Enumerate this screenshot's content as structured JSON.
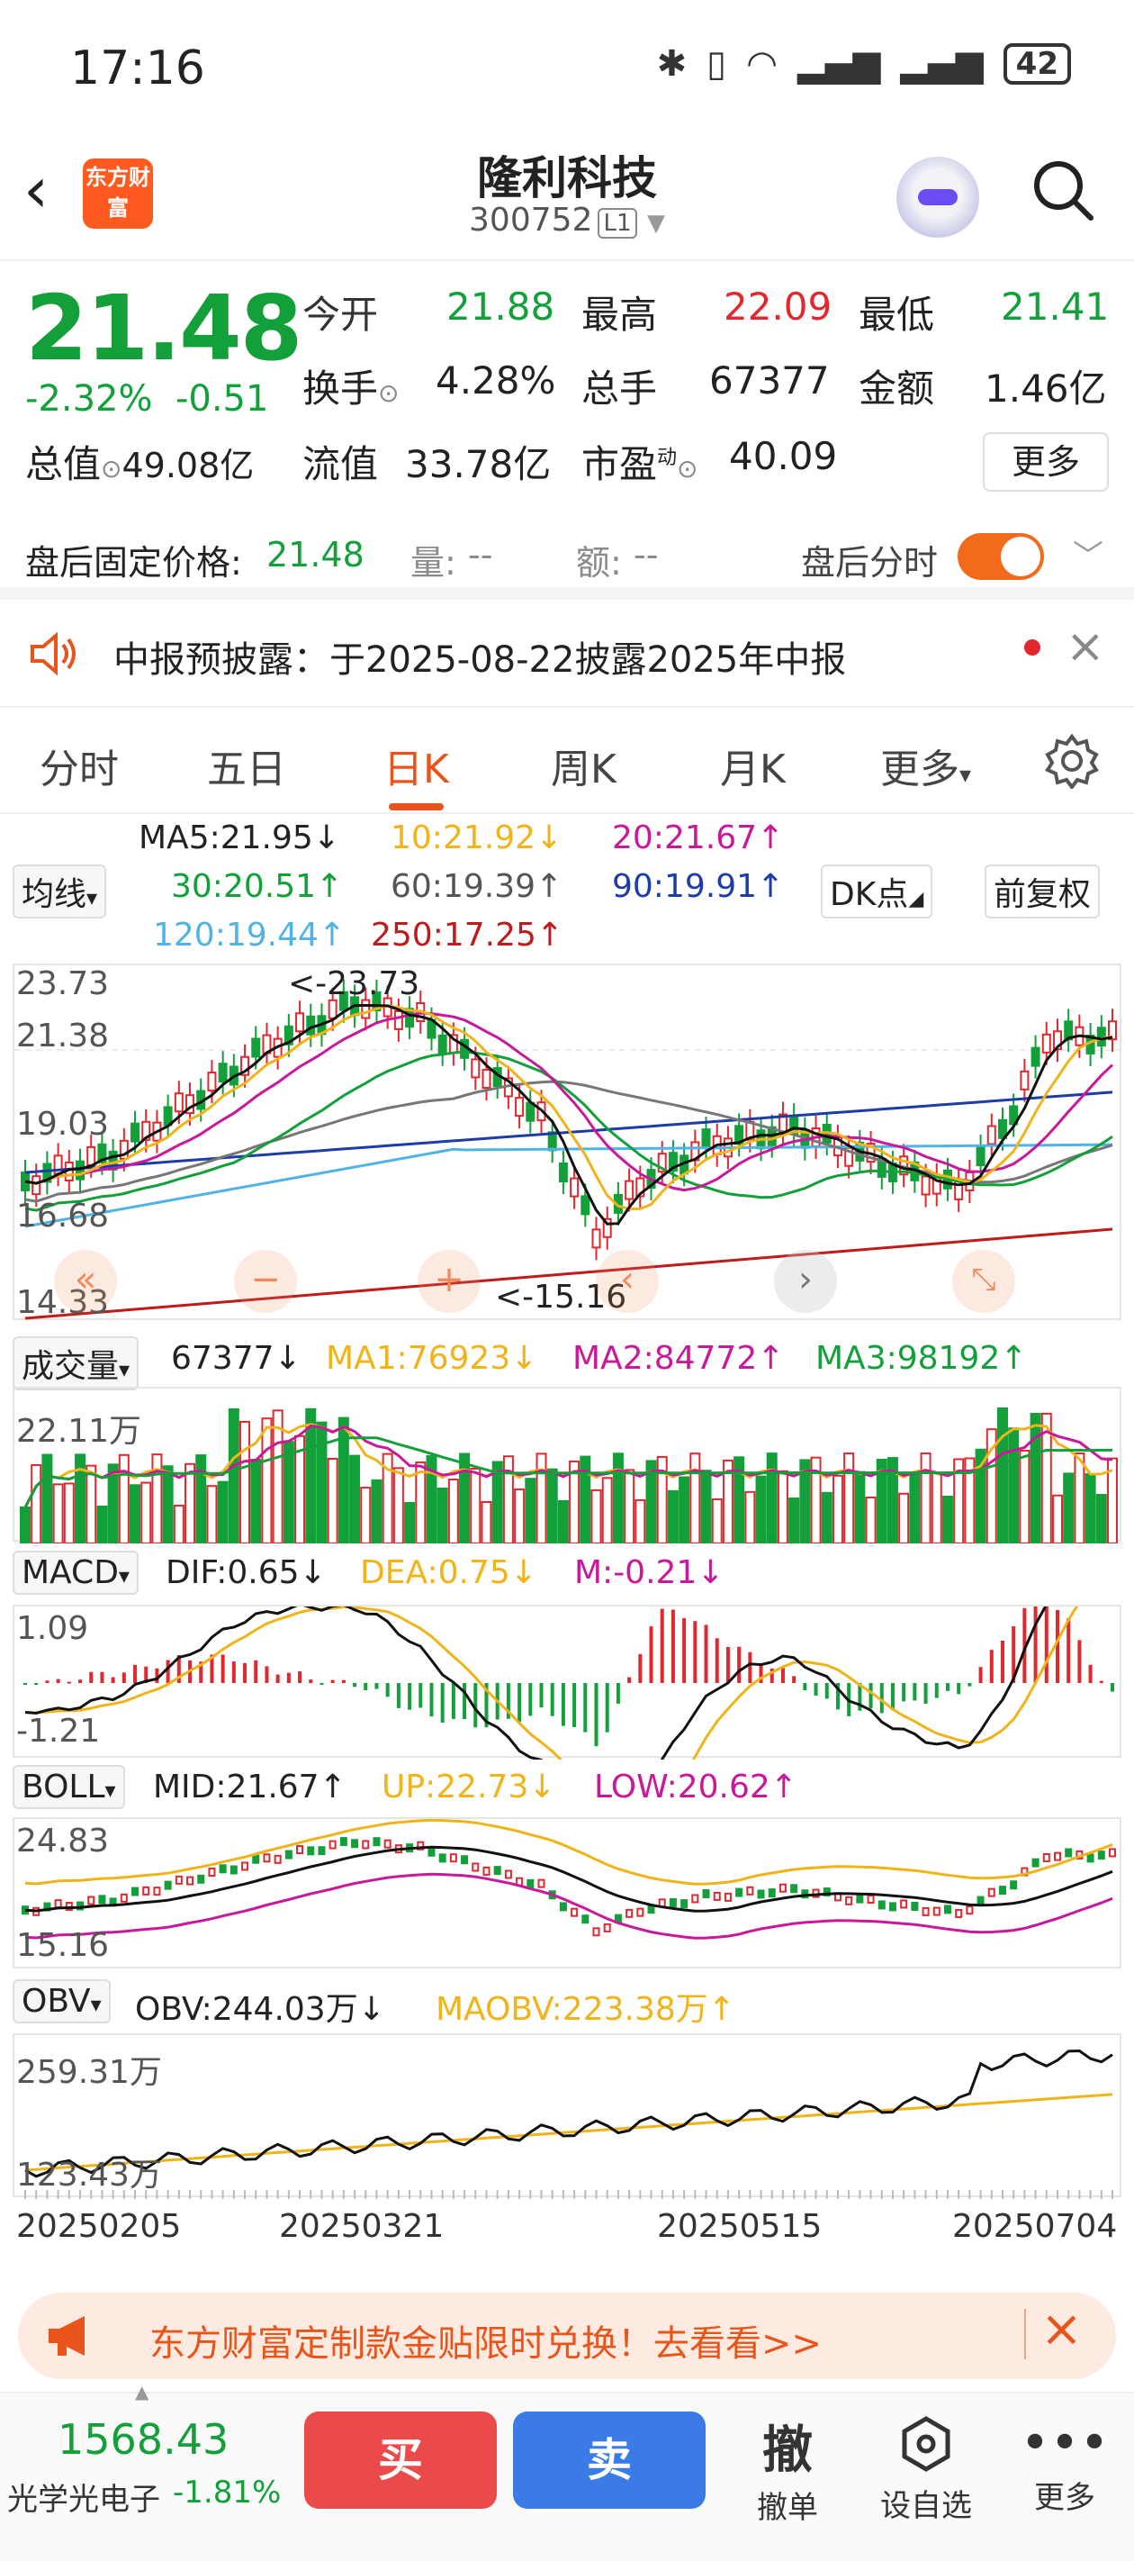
{
  "status_bar": {
    "time": "17:16",
    "battery": "42"
  },
  "header": {
    "logo_text": "东方财富",
    "stock_name": "隆利科技",
    "stock_code": "300752",
    "level": "L1"
  },
  "quote": {
    "price": "21.48",
    "change_pct": "-2.32%",
    "change": "-0.51",
    "open_label": "今开",
    "open": "21.88",
    "high_label": "最高",
    "high": "22.09",
    "low_label": "最低",
    "low": "21.41",
    "turnover_label": "换手",
    "turnover": "4.28%",
    "volume_label": "总手",
    "volume": "67377",
    "amount_label": "金额",
    "amount": "1.46亿",
    "total_cap_label": "总值",
    "total_cap": "49.08亿",
    "float_cap_label": "流值",
    "float_cap": "33.78亿",
    "pe_label": "市盈",
    "pe_sup": "动",
    "pe": "40.09",
    "more": "更多"
  },
  "after_hours": {
    "label": "盘后固定价格:",
    "price": "21.48",
    "vol_label": "量:",
    "vol": "--",
    "amt_label": "额:",
    "amt": "--",
    "toggle_label": "盘后分时"
  },
  "notice": {
    "text": "中报预披露：于2025-08-22披露2025年中报"
  },
  "tabs": [
    "分时",
    "五日",
    "日K",
    "周K",
    "月K",
    "更多"
  ],
  "ma": {
    "selector": "均线",
    "ma5": "MA5:21.95↓",
    "ma10": "10:21.92↓",
    "ma20": "20:21.67↑",
    "ma30": "30:20.51↑",
    "ma60": "60:19.39↑",
    "ma90": "90:19.91↑",
    "ma120": "120:19.44↑",
    "ma250": "250:17.25↑",
    "dk": "DK点",
    "fq": "前复权"
  },
  "kline": {
    "y_top": "23.73",
    "y_2": "21.38",
    "y_3": "19.03",
    "y_4": "16.68",
    "y_bottom": "14.33",
    "max_label": "<-23.73",
    "min_label": "<-15.16"
  },
  "volume": {
    "selector": "成交量",
    "value": "67377↓",
    "ma1": "MA1:76923↓",
    "ma2": "MA2:84772↑",
    "ma3": "MA3:98192↑",
    "y_top": "22.11万"
  },
  "macd": {
    "selector": "MACD",
    "dif": "DIF:0.65↓",
    "dea": "DEA:0.75↓",
    "m": "M:-0.21↓",
    "y_top": "1.09",
    "y_bottom": "-1.21"
  },
  "boll": {
    "selector": "BOLL",
    "mid": "MID:21.67↑",
    "up": "UP:22.73↓",
    "low": "LOW:20.62↑",
    "y_top": "24.83",
    "y_bottom": "15.16"
  },
  "obv": {
    "selector": "OBV",
    "obv": "OBV:244.03万↓",
    "maobv": "MAOBV:223.38万↑",
    "y_top": "259.31万",
    "y_bottom": "123.43万"
  },
  "dates": [
    "20250205",
    "20250321",
    "20250515",
    "20250704"
  ],
  "ad": {
    "text": "东方财富定制款金贴限时兑换！去看看>>"
  },
  "bottom": {
    "index_value": "1568.43",
    "index_name": "光学光电子",
    "index_change": "-1.81%",
    "buy": "买",
    "sell": "卖",
    "cancel": "撤",
    "cancel_label": "撤单",
    "watch_label": "设自选",
    "more_label": "更多"
  }
}
